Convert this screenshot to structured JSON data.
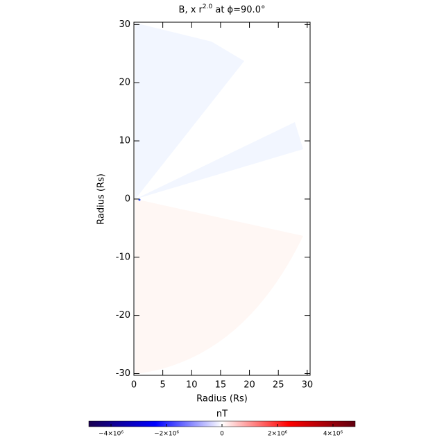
{
  "chart_data": {
    "type": "image",
    "title": [
      "B, x r",
      "2.0",
      " at ϕ=90.0°"
    ],
    "xlabel": "Radius (Rs)",
    "ylabel": "Radius (Rs)",
    "xlim": [
      0,
      30.5
    ],
    "ylim": [
      -30.3,
      30.4
    ],
    "xticks": [
      0,
      5,
      10,
      15,
      20,
      25,
      30
    ],
    "yticks": [
      -30,
      -20,
      -10,
      0,
      10,
      20,
      30
    ],
    "colorbar": {
      "label": "nT",
      "clim": [
        -4800000,
        4800000
      ],
      "colormap": [
        "#1a0050",
        "#0000ff",
        "#ffffff",
        "#ff0000",
        "#600010"
      ],
      "ticks": [
        {
          "value": -4000000,
          "label": "−4×10⁶"
        },
        {
          "value": -2000000,
          "label": "−2×10⁶"
        },
        0,
        {
          "value": 2000000,
          "label": "2×10⁶"
        },
        {
          "value": 4000000,
          "label": "4×10⁶"
        }
      ]
    }
  }
}
